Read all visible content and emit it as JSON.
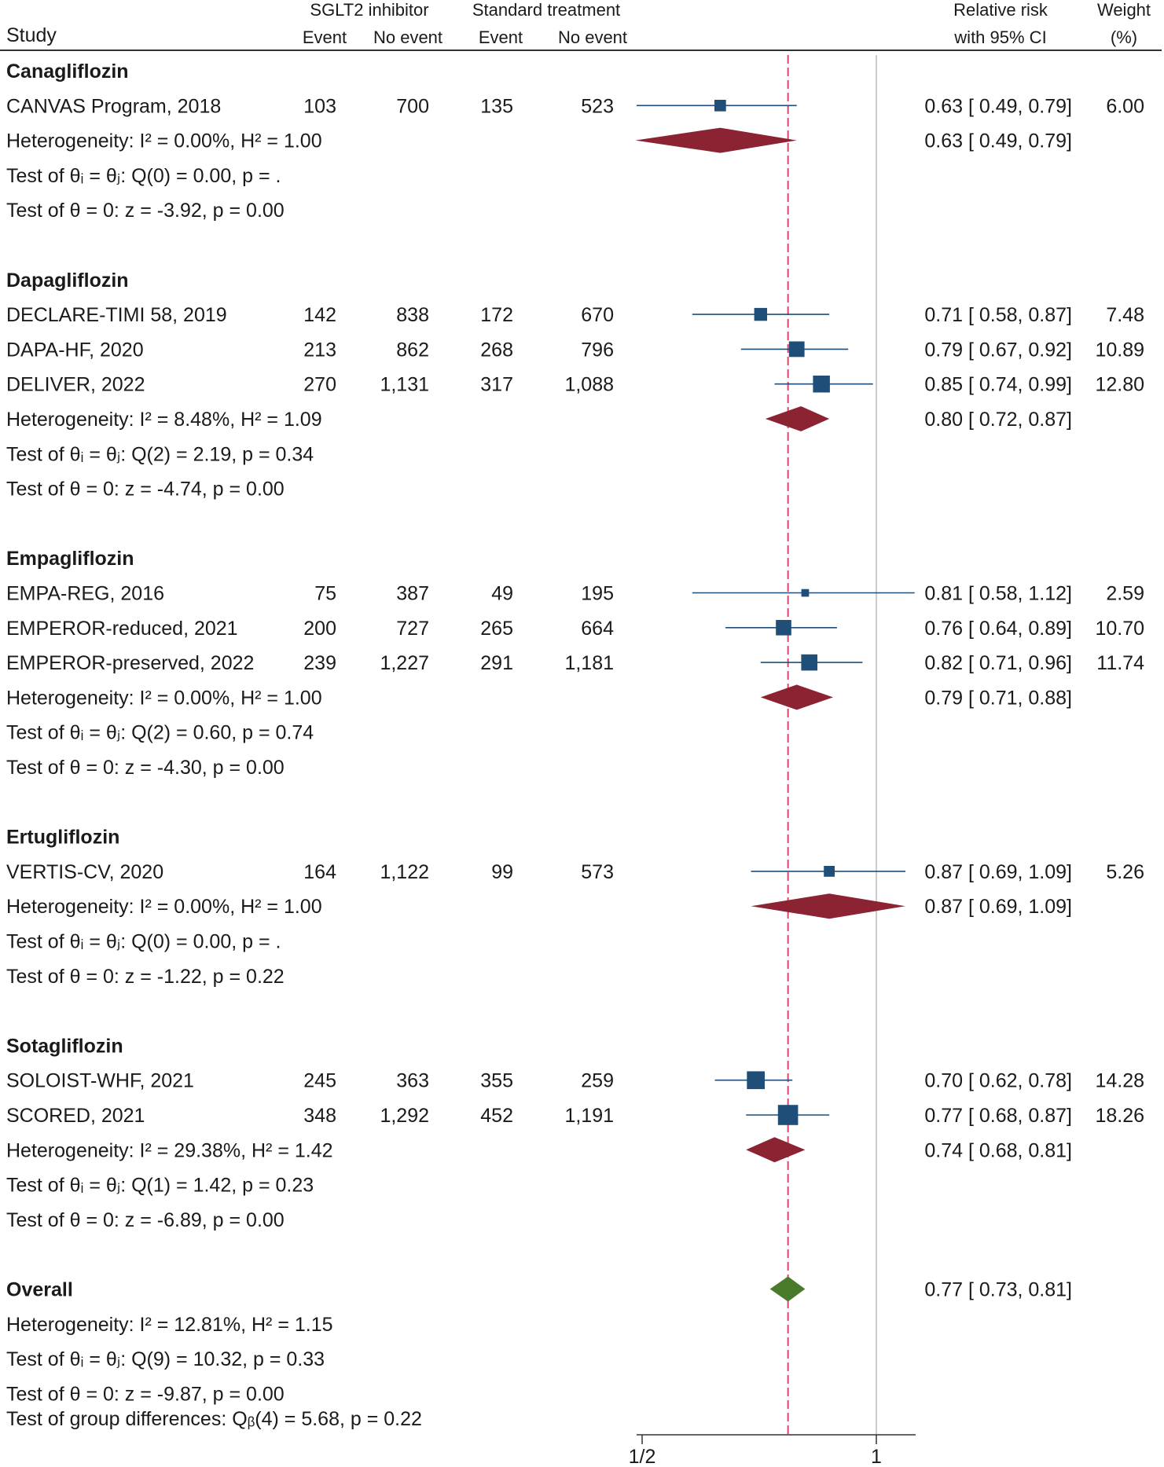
{
  "header": {
    "study": "Study",
    "group1": "SGLT2 inhibitor",
    "group2": "Standard treatment",
    "event": "Event",
    "no_event": "No event",
    "effect_line1": "Relative risk",
    "effect_line2": "with 95% CI",
    "weight_line1": "Weight",
    "weight_line2": "(%)"
  },
  "chart_data": {
    "type": "forest",
    "effect_measure": "Relative risk",
    "x_scale": "log",
    "xlim": [
      0.5,
      1.08
    ],
    "x_ticks": [
      0.5,
      1
    ],
    "x_tick_labels": [
      "1/2",
      "1"
    ],
    "null_line": 1,
    "overall_line": 0.77,
    "groups": [
      {
        "name": "Canagliflozin",
        "studies": [
          {
            "study": "CANVAS Program, 2018",
            "e1": "103",
            "ne1": "700",
            "e2": "135",
            "ne2": "523",
            "rr": 0.63,
            "lo": 0.49,
            "hi": 0.79,
            "ci_text": "0.63 [ 0.49,  0.79]",
            "weight": "6.00"
          }
        ],
        "subtotal": {
          "rr": 0.63,
          "lo": 0.49,
          "hi": 0.79,
          "ci_text": "0.63 [ 0.49,  0.79]"
        },
        "heterogeneity": "Heterogeneity: I² = 0.00%, H² = 1.00",
        "test_homog": "Test of θᵢ = θⱼ: Q(0) = 0.00, p = .",
        "test_zero": "Test of θ = 0: z = -3.92, p = 0.00"
      },
      {
        "name": "Dapagliflozin",
        "studies": [
          {
            "study": "DECLARE-TIMI 58, 2019",
            "e1": "142",
            "ne1": "838",
            "e2": "172",
            "ne2": "670",
            "rr": 0.71,
            "lo": 0.58,
            "hi": 0.87,
            "ci_text": "0.71 [ 0.58,  0.87]",
            "weight": "7.48"
          },
          {
            "study": "DAPA-HF, 2020",
            "e1": "213",
            "ne1": "862",
            "e2": "268",
            "ne2": "796",
            "rr": 0.79,
            "lo": 0.67,
            "hi": 0.92,
            "ci_text": "0.79 [ 0.67,  0.92]",
            "weight": "10.89"
          },
          {
            "study": "DELIVER, 2022",
            "e1": "270",
            "ne1": "1,131",
            "e2": "317",
            "ne2": "1,088",
            "rr": 0.85,
            "lo": 0.74,
            "hi": 0.99,
            "ci_text": "0.85 [ 0.74,  0.99]",
            "weight": "12.80"
          }
        ],
        "subtotal": {
          "rr": 0.8,
          "lo": 0.72,
          "hi": 0.87,
          "ci_text": "0.80 [ 0.72,  0.87]"
        },
        "heterogeneity": "Heterogeneity: I² = 8.48%, H² = 1.09",
        "test_homog": "Test of θᵢ = θⱼ: Q(2) = 2.19, p = 0.34",
        "test_zero": "Test of θ = 0: z = -4.74, p = 0.00"
      },
      {
        "name": "Empagliflozin",
        "studies": [
          {
            "study": "EMPA-REG, 2016",
            "e1": "75",
            "ne1": "387",
            "e2": "49",
            "ne2": "195",
            "rr": 0.81,
            "lo": 0.58,
            "hi": 1.12,
            "ci_text": "0.81 [ 0.58,  1.12]",
            "weight": "2.59"
          },
          {
            "study": "EMPEROR-reduced, 2021",
            "e1": "200",
            "ne1": "727",
            "e2": "265",
            "ne2": "664",
            "rr": 0.76,
            "lo": 0.64,
            "hi": 0.89,
            "ci_text": "0.76 [ 0.64,  0.89]",
            "weight": "10.70"
          },
          {
            "study": "EMPEROR-preserved, 2022",
            "e1": "239",
            "ne1": "1,227",
            "e2": "291",
            "ne2": "1,181",
            "rr": 0.82,
            "lo": 0.71,
            "hi": 0.96,
            "ci_text": "0.82 [ 0.71,  0.96]",
            "weight": "11.74"
          }
        ],
        "subtotal": {
          "rr": 0.79,
          "lo": 0.71,
          "hi": 0.88,
          "ci_text": "0.79 [ 0.71,  0.88]"
        },
        "heterogeneity": "Heterogeneity: I² = 0.00%, H² = 1.00",
        "test_homog": "Test of θᵢ = θⱼ: Q(2) = 0.60, p = 0.74",
        "test_zero": "Test of θ = 0: z = -4.30, p = 0.00"
      },
      {
        "name": "Ertugliflozin",
        "studies": [
          {
            "study": "VERTIS-CV, 2020",
            "e1": "164",
            "ne1": "1,122",
            "e2": "99",
            "ne2": "573",
            "rr": 0.87,
            "lo": 0.69,
            "hi": 1.09,
            "ci_text": "0.87 [ 0.69,  1.09]",
            "weight": "5.26"
          }
        ],
        "subtotal": {
          "rr": 0.87,
          "lo": 0.69,
          "hi": 1.09,
          "ci_text": "0.87 [ 0.69,  1.09]"
        },
        "heterogeneity": "Heterogeneity: I² = 0.00%, H² = 1.00",
        "test_homog": "Test of θᵢ = θⱼ: Q(0) = 0.00, p = .",
        "test_zero": "Test of θ = 0: z = -1.22, p = 0.22"
      },
      {
        "name": "Sotagliflozin",
        "studies": [
          {
            "study": "SOLOIST-WHF, 2021",
            "e1": "245",
            "ne1": "363",
            "e2": "355",
            "ne2": "259",
            "rr": 0.7,
            "lo": 0.62,
            "hi": 0.78,
            "ci_text": "0.70 [ 0.62,  0.78]",
            "weight": "14.28"
          },
          {
            "study": "SCORED, 2021",
            "e1": "348",
            "ne1": "1,292",
            "e2": "452",
            "ne2": "1,191",
            "rr": 0.77,
            "lo": 0.68,
            "hi": 0.87,
            "ci_text": "0.77 [ 0.68,  0.87]",
            "weight": "18.26"
          }
        ],
        "subtotal": {
          "rr": 0.74,
          "lo": 0.68,
          "hi": 0.81,
          "ci_text": "0.74 [ 0.68,  0.81]"
        },
        "heterogeneity": "Heterogeneity: I² = 29.38%, H² = 1.42",
        "test_homog": "Test of θᵢ = θⱼ: Q(1) = 1.42, p = 0.23",
        "test_zero": "Test of θ = 0: z = -6.89, p = 0.00"
      }
    ],
    "overall": {
      "name": "Overall",
      "rr": 0.77,
      "lo": 0.73,
      "hi": 0.81,
      "ci_text": "0.77 [ 0.73,  0.81]",
      "heterogeneity": "Heterogeneity: I² = 12.81%, H² = 1.15",
      "test_homog": "Test of θᵢ = θⱼ: Q(9) = 10.32, p = 0.33",
      "test_zero": "Test of θ = 0: z = -9.87, p = 0.00"
    },
    "group_difference": "Test of group differences: Qᵦ(4) = 5.68, p = 0.22",
    "colors": {
      "study_marker": "#1f4e79",
      "subgroup_diamond": "#8b2332",
      "overall_diamond": "#4a7a2c",
      "null_line": "#bbbbbb",
      "overall_line": "#d9476a"
    }
  }
}
